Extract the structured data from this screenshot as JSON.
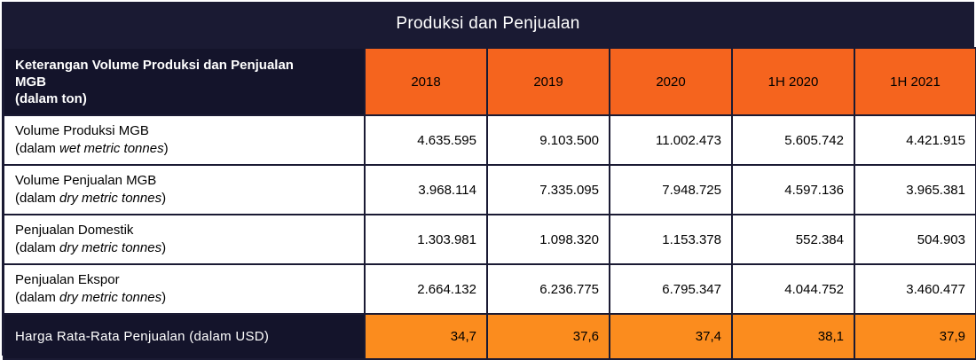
{
  "title": "Produksi dan Penjualan",
  "header": {
    "label_line1": "Keterangan Volume Produksi dan Penjualan",
    "label_line2": "MGB",
    "label_line3": "(dalam ton)",
    "years": [
      "2018",
      "2019",
      "2020",
      "1H 2020",
      "1H 2021"
    ]
  },
  "rows": [
    {
      "name": "Volume Produksi MGB",
      "unit_prefix": "(dalam ",
      "unit_italic": "wet metric tonnes",
      "unit_suffix": ")",
      "values": [
        "4.635.595",
        "9.103.500",
        "11.002.473",
        "5.605.742",
        "4.421.915"
      ]
    },
    {
      "name": "Volume Penjualan MGB",
      "unit_prefix": "(dalam ",
      "unit_italic": "dry metric tonnes",
      "unit_suffix": ")",
      "values": [
        "3.968.114",
        "7.335.095",
        "7.948.725",
        "4.597.136",
        "3.965.381"
      ]
    },
    {
      "name": "Penjualan Domestik",
      "unit_prefix": "(dalam ",
      "unit_italic": "dry metric tonnes",
      "unit_suffix": ")",
      "values": [
        "1.303.981",
        "1.098.320",
        "1.153.378",
        "552.384",
        "504.903"
      ]
    },
    {
      "name": "Penjualan Ekspor",
      "unit_prefix": "(dalam ",
      "unit_italic": "dry metric tonnes",
      "unit_suffix": ")",
      "values": [
        "2.664.132",
        "6.236.775",
        "6.795.347",
        "4.044.752",
        "3.460.477"
      ]
    }
  ],
  "footer": {
    "label": "Harga Rata-Rata Penjualan (dalam USD)",
    "values": [
      "34,7",
      "37,6",
      "37,4",
      "38,1",
      "37,9"
    ]
  },
  "colors": {
    "navy": "#1a1a33",
    "header_orange": "#f5641e",
    "footer_orange": "#fb8c1e"
  }
}
